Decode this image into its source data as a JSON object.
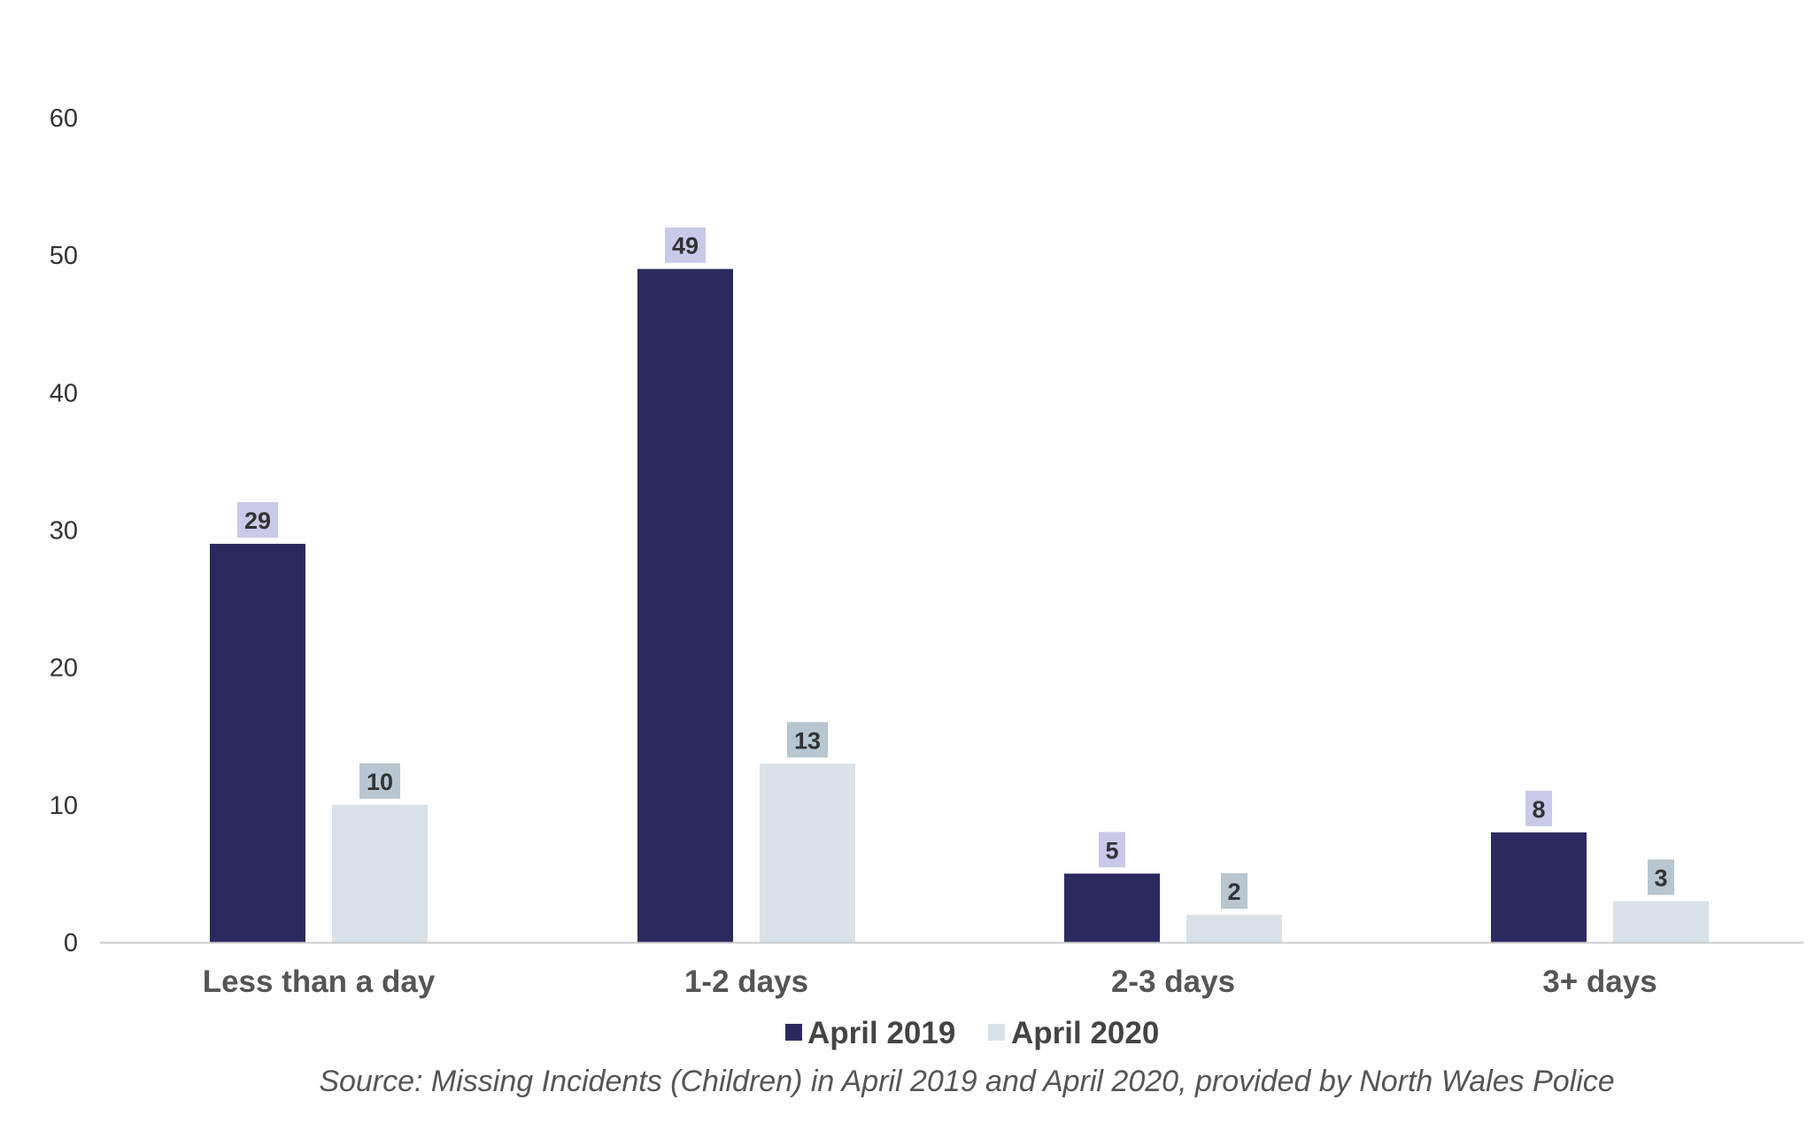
{
  "chart_data": {
    "type": "bar",
    "categories": [
      "Less than a day",
      "1-2 days",
      "2-3 days",
      "3+ days"
    ],
    "series": [
      {
        "name": "April 2019",
        "values": [
          29,
          49,
          5,
          8
        ],
        "color": "#2b2a5e",
        "label_bg": "#c9c9ea"
      },
      {
        "name": "April 2020",
        "values": [
          10,
          13,
          2,
          3
        ],
        "color": "#d9e2e8",
        "label_bg": "#b7c6d0"
      }
    ],
    "ylim": [
      0,
      60
    ],
    "yticks": [
      "0",
      "10",
      "20",
      "30",
      "40",
      "50",
      "60"
    ],
    "grid": false,
    "legend_position": "bottom",
    "source": "Source: Missing Incidents (Children) in April 2019 and April 2020, provided by North Wales Police",
    "axis_color": "#cccccc"
  }
}
